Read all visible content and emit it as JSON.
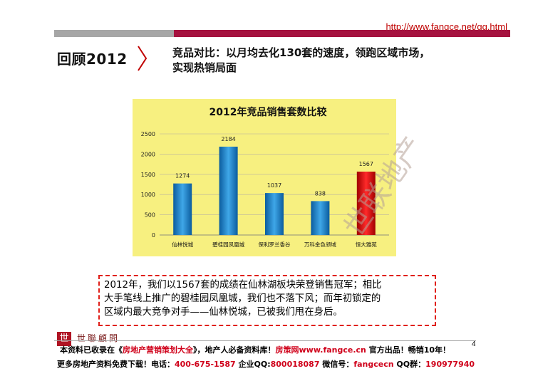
{
  "header": {
    "url": "http://www.fangce.net/gg.html",
    "badge": "回顾2012",
    "headline_line1": "竞品对比：以月均去化130套的速度，领跑区域市场，",
    "headline_line2": "实现热销局面"
  },
  "chart_data": {
    "type": "bar",
    "title": "2012年竞品销售套数比较",
    "categories": [
      "仙林悦城",
      "碧桂园凤凰城",
      "保利罗兰香谷",
      "万科金色领域",
      "恒大雅苑"
    ],
    "values": [
      1274,
      2184,
      1037,
      838,
      1567
    ],
    "data_labels": [
      "1274",
      "2184",
      "1037",
      "838",
      "1567"
    ],
    "yticks": [
      0,
      500,
      1000,
      1500,
      2000,
      2500
    ],
    "ylim": [
      0,
      2500
    ],
    "colors": [
      "#1f7fc4",
      "#1f7fc4",
      "#1f7fc4",
      "#1f7fc4",
      "#e00000"
    ],
    "grid": true
  },
  "watermark": "世联地产",
  "note": {
    "line1": "2012年，我们以1567套的成绩在仙林湖板块荣登销售冠军；相比",
    "line2": "大手笔线上推广的碧桂园凤凰城，我们也不落下风；而年初锁定的",
    "line3": "区域内最大竞争对手——仙林悦城，已被我们甩在身后。"
  },
  "footer": {
    "logo_glyph": "世",
    "brand": "世聯顧問",
    "row1_a": "本资料已收录在《",
    "row1_b": "房地产营销策划大全",
    "row1_c": "》，地产人必备资料库！",
    "row1_d": "房策网www.fangce.cn",
    "row1_e": " 官方出品！畅销10年！",
    "row2_a": "更多房地产资料免费下载！电话：",
    "row2_b": "400-675-1587",
    "row2_c": " 企业QQ:",
    "row2_d": "800018087",
    "row2_e": " 微信号：",
    "row2_f": "fangcecn",
    "row2_g": " QQ群：",
    "row2_h": "190977940",
    "page_number": "4"
  }
}
